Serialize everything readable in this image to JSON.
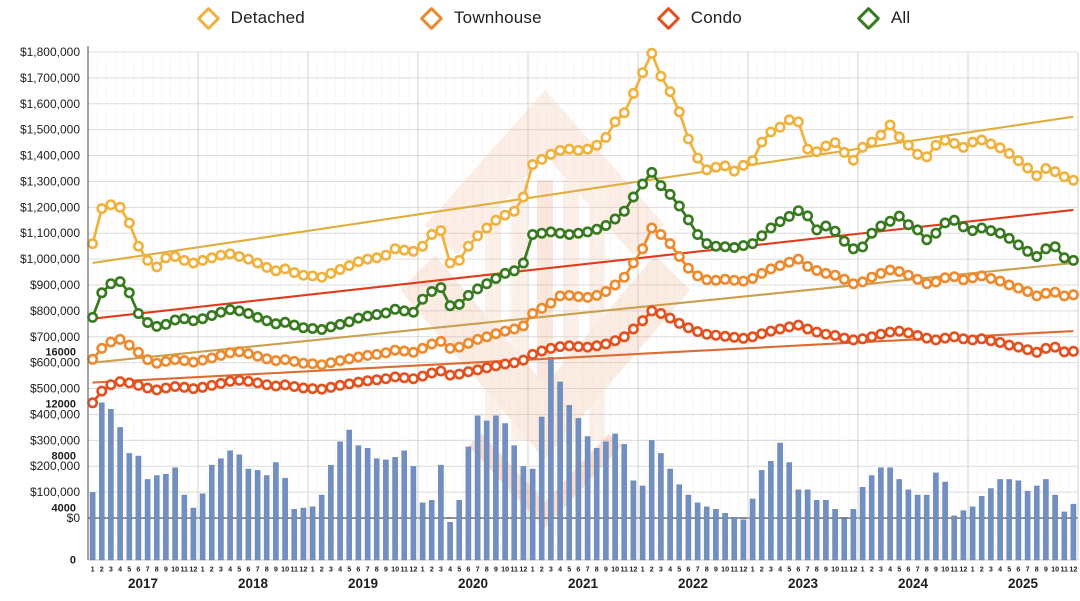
{
  "legend": {
    "items": [
      {
        "label": "Detached",
        "color": "#F0B23E"
      },
      {
        "label": "Townhouse",
        "color": "#EE8A2E"
      },
      {
        "label": "Condo",
        "color": "#E2511E"
      },
      {
        "label": "All",
        "color": "#377A1F"
      }
    ]
  },
  "chart_data": {
    "type": "composite",
    "subtypes": [
      "line",
      "bar"
    ],
    "title": "",
    "grid": true,
    "legend_position": "top",
    "x_axis": {
      "years": [
        "2017",
        "2018",
        "2019",
        "2020",
        "2021",
        "2022",
        "2023",
        "2024",
        "2025"
      ],
      "month_labels": [
        "1",
        "2",
        "3",
        "4",
        "5",
        "6",
        "7",
        "8",
        "9",
        "10",
        "11",
        "12"
      ],
      "n_points": 108
    },
    "price_axis": {
      "min": 0,
      "max": 1800000,
      "step": 100000,
      "labels": [
        "$0",
        "$100,000",
        "$200,000",
        "$300,000",
        "$400,000",
        "$500,000",
        "$600,000",
        "$700,000",
        "$800,000",
        "$900,000",
        "$1,000,000",
        "$1,100,000",
        "$1,200,000",
        "$1,300,000",
        "$1,400,000",
        "$1,500,000",
        "$1,600,000",
        "$1,700,000",
        "$1,800,000"
      ]
    },
    "volume_axis": {
      "min": 0,
      "max": 16000,
      "step": 4000,
      "labels": [
        "0",
        "4000",
        "8000",
        "12000",
        "16000"
      ]
    },
    "series": [
      {
        "name": "Detached",
        "color": "#F0B23E",
        "values": [
          1060000,
          1195000,
          1210000,
          1200000,
          1140000,
          1050000,
          995000,
          970000,
          1005000,
          1010000,
          995000,
          985000,
          995000,
          1005000,
          1015000,
          1020000,
          1010000,
          1000000,
          985000,
          968000,
          955000,
          962000,
          948000,
          938000,
          935000,
          930000,
          945000,
          960000,
          975000,
          990000,
          1000000,
          1005000,
          1015000,
          1040000,
          1035000,
          1030000,
          1050000,
          1095000,
          1110000,
          985000,
          995000,
          1050000,
          1090000,
          1120000,
          1150000,
          1170000,
          1185000,
          1240000,
          1365000,
          1385000,
          1405000,
          1420000,
          1425000,
          1420000,
          1425000,
          1440000,
          1470000,
          1530000,
          1565000,
          1640000,
          1720000,
          1795000,
          1706000,
          1647000,
          1569000,
          1464000,
          1390000,
          1345000,
          1355000,
          1360000,
          1340000,
          1362000,
          1380000,
          1452000,
          1491000,
          1510000,
          1538000,
          1530000,
          1425000,
          1415000,
          1437000,
          1450000,
          1412000,
          1382000,
          1432000,
          1452000,
          1479000,
          1518000,
          1472000,
          1440000,
          1405000,
          1395000,
          1440000,
          1459000,
          1447000,
          1432000,
          1452000,
          1460000,
          1445000,
          1430000,
          1408000,
          1380000,
          1352000,
          1322000,
          1350000,
          1338000,
          1318000,
          1305000
        ]
      },
      {
        "name": "Townhouse",
        "color": "#EE8A2E",
        "values": [
          613000,
          655000,
          680000,
          690000,
          668000,
          640000,
          612000,
          598000,
          605000,
          612000,
          608000,
          602000,
          610000,
          618000,
          628000,
          638000,
          642000,
          635000,
          625000,
          615000,
          608000,
          612000,
          605000,
          598000,
          596000,
          592000,
          600000,
          608000,
          615000,
          622000,
          628000,
          632000,
          638000,
          648000,
          645000,
          640000,
          655000,
          672000,
          682000,
          655000,
          660000,
          675000,
          690000,
          700000,
          712000,
          722000,
          730000,
          742000,
          790000,
          810000,
          830000,
          858000,
          860000,
          855000,
          852000,
          860000,
          875000,
          900000,
          930000,
          985000,
          1040000,
          1120000,
          1095000,
          1060000,
          1010000,
          965000,
          935000,
          920000,
          918000,
          922000,
          918000,
          915000,
          925000,
          945000,
          962000,
          975000,
          988000,
          1000000,
          972000,
          956000,
          945000,
          938000,
          922000,
          905000,
          912000,
          930000,
          945000,
          958000,
          952000,
          938000,
          922000,
          905000,
          912000,
          928000,
          932000,
          920000,
          928000,
          935000,
          925000,
          915000,
          900000,
          888000,
          875000,
          858000,
          868000,
          872000,
          858000,
          862000
        ]
      },
      {
        "name": "Condo",
        "color": "#E2511E",
        "values": [
          445000,
          490000,
          515000,
          527000,
          522000,
          512000,
          502000,
          495000,
          502000,
          508000,
          505000,
          500000,
          505000,
          512000,
          520000,
          528000,
          532000,
          528000,
          522000,
          515000,
          510000,
          514000,
          508000,
          502000,
          500000,
          498000,
          505000,
          512000,
          518000,
          525000,
          530000,
          534000,
          538000,
          545000,
          542000,
          538000,
          548000,
          560000,
          568000,
          552000,
          556000,
          565000,
          572000,
          580000,
          588000,
          595000,
          600000,
          610000,
          632000,
          645000,
          655000,
          662000,
          665000,
          662000,
          660000,
          665000,
          672000,
          685000,
          700000,
          730000,
          762000,
          800000,
          790000,
          772000,
          752000,
          735000,
          720000,
          710000,
          706000,
          702000,
          698000,
          694000,
          700000,
          712000,
          722000,
          730000,
          738000,
          745000,
          730000,
          718000,
          710000,
          705000,
          695000,
          688000,
          692000,
          700000,
          710000,
          718000,
          722000,
          715000,
          705000,
          695000,
          688000,
          695000,
          700000,
          692000,
          688000,
          692000,
          685000,
          678000,
          668000,
          660000,
          650000,
          640000,
          655000,
          660000,
          642000,
          644000
        ]
      },
      {
        "name": "All",
        "color": "#377A1F",
        "values": [
          775000,
          870000,
          905000,
          913000,
          870000,
          790000,
          755000,
          740000,
          748000,
          765000,
          770000,
          762000,
          770000,
          782000,
          795000,
          805000,
          800000,
          790000,
          775000,
          762000,
          750000,
          756000,
          745000,
          735000,
          732000,
          728000,
          738000,
          748000,
          758000,
          772000,
          780000,
          786000,
          792000,
          806000,
          800000,
          795000,
          845000,
          875000,
          890000,
          820000,
          825000,
          860000,
          885000,
          905000,
          925000,
          945000,
          955000,
          985000,
          1095000,
          1100000,
          1105000,
          1100000,
          1095000,
          1100000,
          1105000,
          1115000,
          1130000,
          1155000,
          1185000,
          1240000,
          1290000,
          1335000,
          1284000,
          1250000,
          1205000,
          1152000,
          1095000,
          1060000,
          1050000,
          1048000,
          1045000,
          1052000,
          1060000,
          1090000,
          1120000,
          1145000,
          1165000,
          1187000,
          1167000,
          1113000,
          1128000,
          1108000,
          1069000,
          1040000,
          1047000,
          1100000,
          1128000,
          1146000,
          1166000,
          1133000,
          1113000,
          1075000,
          1100000,
          1140000,
          1150000,
          1125000,
          1110000,
          1120000,
          1110000,
          1100000,
          1080000,
          1055000,
          1030000,
          1010000,
          1040000,
          1048000,
          1005000,
          995000
        ]
      }
    ],
    "trend_lines": [
      {
        "series": "Detached",
        "color": "#DFAE3C",
        "start_value": 985000,
        "end_value": 1550000
      },
      {
        "series": "All",
        "color": "#E03C1C",
        "start_value": 770000,
        "end_value": 1190000
      },
      {
        "series": "Townhouse",
        "color": "#C9A04D",
        "start_value": 600000,
        "end_value": 985000
      },
      {
        "series": "Condo",
        "color": "#DE6B33",
        "start_value": 523000,
        "end_value": 722000
      }
    ],
    "bars": {
      "color": "#7290BF",
      "axis": "volume",
      "values": [
        5200,
        12100,
        11600,
        10200,
        8200,
        8000,
        6200,
        6500,
        6600,
        7100,
        5000,
        4000,
        5100,
        7300,
        7800,
        8400,
        8100,
        7000,
        6900,
        6500,
        7500,
        6300,
        3900,
        4000,
        4100,
        5000,
        7300,
        9100,
        10000,
        8800,
        8600,
        7800,
        7700,
        7900,
        8400,
        7200,
        4400,
        4600,
        7300,
        2900,
        4600,
        8700,
        11100,
        10700,
        11100,
        10500,
        8800,
        7200,
        7000,
        11000,
        15600,
        13700,
        11900,
        10900,
        9500,
        8600,
        9100,
        9700,
        8900,
        6100,
        5700,
        9200,
        8200,
        7000,
        5800,
        5000,
        4400,
        4100,
        3900,
        3600,
        3300,
        3100,
        4700,
        6900,
        7600,
        9000,
        7500,
        5400,
        5400,
        4600,
        4600,
        3900,
        3200,
        3900,
        5600,
        6500,
        7100,
        7100,
        6200,
        5400,
        5000,
        5000,
        6700,
        6000,
        3400,
        3800,
        4100,
        4900,
        5500,
        6200,
        6200,
        6100,
        5300,
        5700,
        6200,
        5000,
        3700,
        4300
      ]
    }
  },
  "watermark": {
    "present": true,
    "colors": [
      "#F2AE85",
      "#F0A277",
      "#E98A60",
      "#E06A45"
    ]
  }
}
